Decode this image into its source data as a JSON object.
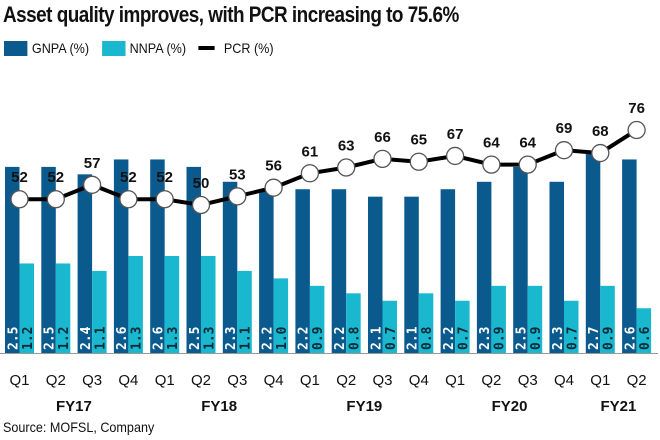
{
  "chart_data": {
    "type": "bar",
    "title": "Asset quality improves, with PCR increasing to 75.6%",
    "categories": [
      "Q1",
      "Q2",
      "Q3",
      "Q4",
      "Q1",
      "Q2",
      "Q3",
      "Q4",
      "Q1",
      "Q2",
      "Q3",
      "Q4",
      "Q1",
      "Q2",
      "Q3",
      "Q4",
      "Q1",
      "Q2"
    ],
    "fiscal_years": [
      {
        "label": "FY17",
        "start": 0,
        "end": 3
      },
      {
        "label": "FY18",
        "start": 4,
        "end": 7
      },
      {
        "label": "FY19",
        "start": 8,
        "end": 11
      },
      {
        "label": "FY20",
        "start": 12,
        "end": 15
      },
      {
        "label": "FY21",
        "start": 16,
        "end": 17
      }
    ],
    "series": [
      {
        "name": "GNPA (%)",
        "type": "bar",
        "color": "#0b5a8e",
        "values": [
          2.5,
          2.5,
          2.4,
          2.6,
          2.6,
          2.5,
          2.3,
          2.2,
          2.2,
          2.2,
          2.1,
          2.1,
          2.2,
          2.3,
          2.5,
          2.3,
          2.7,
          2.6
        ],
        "labels": [
          "2.5",
          "2.5",
          "2.4",
          "2.6",
          "2.6",
          "2.5",
          "2.3",
          "2.2",
          "2.2",
          "2.2",
          "2.1",
          "2.1",
          "2.2",
          "2.3",
          "2.5",
          "2.3",
          "2.7",
          "2.6"
        ]
      },
      {
        "name": "NNPA (%)",
        "type": "bar",
        "color": "#1ab8cf",
        "values": [
          1.2,
          1.2,
          1.1,
          1.3,
          1.3,
          1.3,
          1.1,
          1.0,
          0.9,
          0.8,
          0.7,
          0.8,
          0.7,
          0.9,
          0.9,
          0.7,
          0.9,
          0.6
        ],
        "labels": [
          "1.2",
          "1.2",
          "1.1",
          "1.3",
          "1.3",
          "1.3",
          "1.1",
          "1.0",
          "0.9",
          "0.8",
          "0.7",
          "0.8",
          "0.7",
          "0.9",
          "0.9",
          "0.7",
          "0.9",
          "0.6"
        ]
      },
      {
        "name": "PCR (%)",
        "type": "line",
        "color": "#000000",
        "values": [
          52,
          52,
          57,
          52,
          52,
          50,
          53,
          56,
          61,
          63,
          66,
          65,
          67,
          64,
          64,
          69,
          68,
          76
        ],
        "labels": [
          "52",
          "52",
          "57",
          "52",
          "52",
          "50",
          "53",
          "56",
          "61",
          "63",
          "66",
          "65",
          "67",
          "64",
          "64",
          "69",
          "68",
          "76"
        ]
      }
    ],
    "legend_position": "top-left",
    "grid": false,
    "source": "Source: MOFSL, Company"
  }
}
